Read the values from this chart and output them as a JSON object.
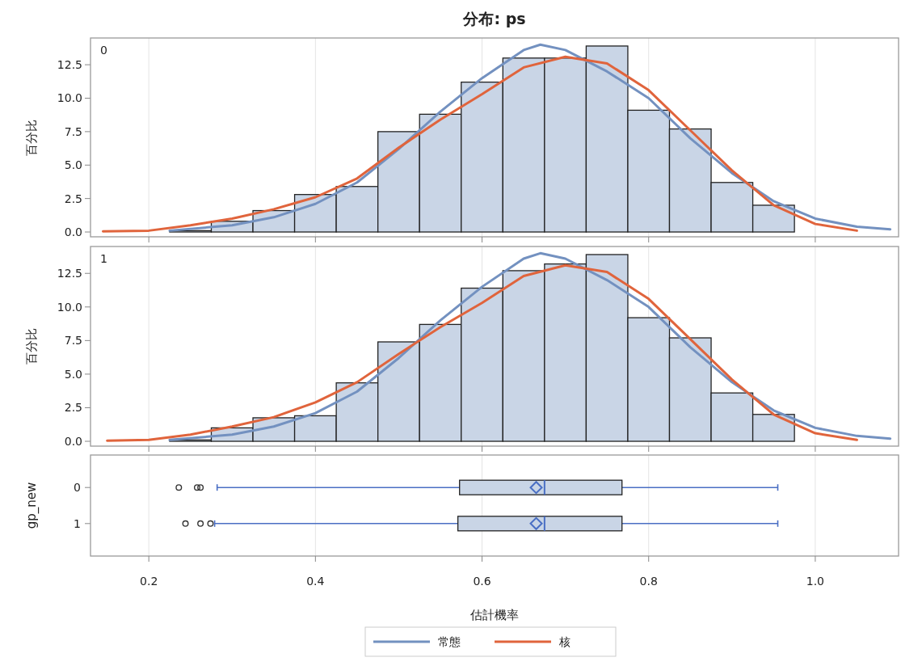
{
  "chart_data": [
    {
      "type": "histogram",
      "title": "分布: ps",
      "ylabel": "百分比",
      "annotations": [
        "0"
      ],
      "color": "#c9d5e6",
      "bins": [
        0.225,
        0.275,
        0.325,
        0.375,
        0.425,
        0.475,
        0.525,
        0.575,
        0.625,
        0.675,
        0.725,
        0.775,
        0.825,
        0.875,
        0.925,
        0.975
      ],
      "values": [
        0.1,
        0.8,
        1.6,
        2.8,
        3.4,
        7.5,
        8.8,
        11.2,
        13.0,
        13.0,
        13.9,
        9.1,
        7.7,
        3.7,
        2.0
      ],
      "series": [
        {
          "name": "常態",
          "type": "line",
          "color": "#7391c0",
          "x": [
            0.225,
            0.3,
            0.35,
            0.4,
            0.45,
            0.5,
            0.55,
            0.6,
            0.65,
            0.67,
            0.7,
            0.75,
            0.8,
            0.85,
            0.9,
            0.95,
            1.0,
            1.05,
            1.09
          ],
          "values": [
            0.1,
            0.5,
            1.1,
            2.1,
            3.7,
            6.2,
            9.0,
            11.5,
            13.6,
            14.0,
            13.6,
            12.0,
            10.0,
            7.0,
            4.4,
            2.3,
            1.0,
            0.4,
            0.2
          ]
        },
        {
          "name": "核",
          "type": "line",
          "color": "#e0643c",
          "x": [
            0.145,
            0.2,
            0.25,
            0.3,
            0.35,
            0.4,
            0.45,
            0.5,
            0.55,
            0.6,
            0.65,
            0.7,
            0.75,
            0.8,
            0.85,
            0.9,
            0.95,
            1.0,
            1.05
          ],
          "values": [
            0.05,
            0.1,
            0.5,
            1.0,
            1.7,
            2.6,
            4.0,
            6.3,
            8.4,
            10.3,
            12.3,
            13.1,
            12.6,
            10.6,
            7.6,
            4.6,
            2.0,
            0.6,
            0.1
          ]
        }
      ],
      "xlim": [
        0.13,
        1.1
      ],
      "ylim": [
        -0.36,
        14.5
      ],
      "grid": "x",
      "tick_labels": "y",
      "legend": "bottom",
      "xticks": [
        {
          "value": 0.2,
          "label": null
        },
        {
          "value": 0.4,
          "label": null
        },
        {
          "value": 0.6,
          "label": null
        },
        {
          "value": 0.8,
          "label": null
        },
        {
          "value": 1.0,
          "label": null
        }
      ],
      "yticks": [
        {
          "value": 0,
          "label": "0.0"
        },
        {
          "value": 2.5,
          "label": "2.5"
        },
        {
          "value": 5,
          "label": "5.0"
        },
        {
          "value": 7.5,
          "label": "7.5"
        },
        {
          "value": 10,
          "label": "10.0"
        },
        {
          "value": 12.5,
          "label": "12.5"
        }
      ]
    },
    {
      "type": "histogram",
      "ylabel": "百分比",
      "annotations": [
        "1"
      ],
      "color": "#c9d5e6",
      "bins": [
        0.225,
        0.275,
        0.325,
        0.375,
        0.425,
        0.475,
        0.525,
        0.575,
        0.625,
        0.675,
        0.725,
        0.775,
        0.825,
        0.875,
        0.925,
        0.975
      ],
      "values": [
        0.1,
        1.0,
        1.75,
        1.9,
        4.35,
        7.4,
        8.7,
        11.4,
        12.7,
        13.2,
        13.9,
        9.2,
        7.7,
        3.6,
        2.0
      ],
      "series": [
        {
          "type": "line",
          "color": "#7391c0",
          "x": [
            0.225,
            0.3,
            0.35,
            0.4,
            0.45,
            0.5,
            0.55,
            0.6,
            0.65,
            0.67,
            0.7,
            0.75,
            0.8,
            0.85,
            0.9,
            0.95,
            1.0,
            1.05,
            1.09
          ],
          "values": [
            0.1,
            0.5,
            1.1,
            2.1,
            3.7,
            6.2,
            9.0,
            11.5,
            13.6,
            14.0,
            13.6,
            12.0,
            10.0,
            7.0,
            4.4,
            2.3,
            1.0,
            0.4,
            0.2
          ]
        },
        {
          "type": "line",
          "color": "#e0643c",
          "x": [
            0.15,
            0.2,
            0.25,
            0.3,
            0.35,
            0.4,
            0.45,
            0.5,
            0.55,
            0.6,
            0.65,
            0.7,
            0.75,
            0.8,
            0.85,
            0.9,
            0.95,
            1.0,
            1.05
          ],
          "values": [
            0.05,
            0.1,
            0.5,
            1.1,
            1.8,
            2.9,
            4.4,
            6.5,
            8.5,
            10.3,
            12.3,
            13.1,
            12.6,
            10.6,
            7.6,
            4.6,
            2.0,
            0.6,
            0.1
          ]
        }
      ],
      "xlim": [
        0.13,
        1.1
      ],
      "ylim": [
        -0.36,
        14.5
      ],
      "grid": "x",
      "tick_labels": "y",
      "xticks": [
        {
          "value": 0.2,
          "label": null
        },
        {
          "value": 0.4,
          "label": null
        },
        {
          "value": 0.6,
          "label": null
        },
        {
          "value": 0.8,
          "label": null
        },
        {
          "value": 1.0,
          "label": null
        }
      ],
      "yticks": [
        {
          "value": 0,
          "label": "0.0"
        },
        {
          "value": 2.5,
          "label": "2.5"
        },
        {
          "value": 5,
          "label": "5.0"
        },
        {
          "value": 7.5,
          "label": "7.5"
        },
        {
          "value": 10,
          "label": "10.0"
        },
        {
          "value": 12.5,
          "label": "12.5"
        }
      ]
    },
    {
      "type": "box",
      "orientation": "horizontal",
      "xlabel": "估計機率",
      "ylabel": "gp_new",
      "categories": [
        "0",
        "1"
      ],
      "color": "#c9d5e6",
      "marker": "diamond",
      "boxes": [
        {
          "low": 0.282,
          "q1": 0.573,
          "median": 0.675,
          "q3": 0.768,
          "high": 0.955,
          "mean": 0.665,
          "outliers": [
            0.236,
            0.258,
            0.262
          ]
        },
        {
          "low": 0.279,
          "q1": 0.571,
          "median": 0.675,
          "q3": 0.768,
          "high": 0.955,
          "mean": 0.665,
          "outliers": [
            0.244,
            0.262,
            0.274
          ]
        }
      ],
      "xlim": [
        0.13,
        1.1
      ],
      "grid": "x",
      "xticks": [
        {
          "value": 0.2,
          "label": "0.2"
        },
        {
          "value": 0.4,
          "label": "0.4"
        },
        {
          "value": 0.6,
          "label": "0.6"
        },
        {
          "value": 0.8,
          "label": "0.8"
        },
        {
          "value": 1.0,
          "label": "1.0"
        }
      ]
    }
  ]
}
